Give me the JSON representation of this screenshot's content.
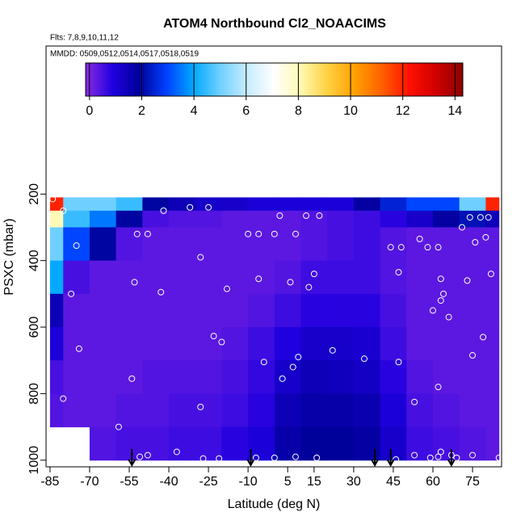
{
  "chart_data": {
    "type": "curtain",
    "title": "ATOM4 Northbound Cl2_NOAACIMS",
    "flights_label": "Flts: 7,8,9,10,11,12",
    "dates_label": "MMDD: 0509,0512,0514,0517,0518,0519",
    "xlabel": "Latitude (deg N)",
    "ylabel": "PSXC (mbar)",
    "xlim": [
      -86.5,
      86
    ],
    "xticks": [
      -85,
      -70,
      -55,
      -40,
      -25,
      -10,
      5,
      15,
      30,
      45,
      60,
      75
    ],
    "ylim": [
      1020,
      -245
    ],
    "yticks": [
      200,
      400,
      600,
      800,
      1000
    ],
    "cblim": [
      -0.15,
      14.3
    ],
    "cbticks": [
      0,
      2,
      4,
      6,
      8,
      10,
      12,
      14
    ],
    "colorscale": [
      "#8a2be2",
      "#2000e0",
      "#00009a",
      "#0040ff",
      "#00a8ff",
      "#70d0ff",
      "#c8ecff",
      "#ffffff",
      "#fff8b0",
      "#ffd040",
      "#ffa000",
      "#ff6000",
      "#ff1000",
      "#d00000",
      "#8b0000"
    ],
    "lat_edges": [
      -85,
      -80,
      -70,
      -60,
      -50,
      -40,
      -30,
      -20,
      -10,
      0,
      10,
      20,
      30,
      40,
      50,
      60,
      70,
      80,
      85
    ],
    "p_edges": [
      210,
      250,
      300,
      400,
      500,
      600,
      700,
      800,
      900,
      1000
    ],
    "values": [
      [
        12,
        5,
        5,
        4.5,
        2,
        1.5,
        1.2,
        1.2,
        1,
        1,
        1,
        1,
        1.8,
        2.5,
        3,
        3,
        5,
        12
      ],
      [
        8,
        4.5,
        3.5,
        2,
        0.5,
        0.4,
        0.4,
        0.3,
        0.3,
        0.3,
        0.4,
        0.5,
        0.6,
        0.8,
        1.2,
        1.8,
        2.2,
        1.5
      ],
      [
        5,
        3,
        2,
        0.4,
        0.3,
        0.3,
        0.3,
        0.3,
        0.3,
        0.3,
        0.4,
        0.5,
        0.6,
        0.4,
        0.3,
        0.3,
        0.3,
        0.3
      ],
      [
        4,
        0.5,
        0.3,
        0.3,
        0.3,
        0.3,
        0.3,
        0.3,
        0.3,
        0.4,
        0.6,
        0.6,
        0.6,
        0.4,
        0.3,
        0.3,
        0.3,
        0.3
      ],
      [
        1.5,
        0.3,
        0.3,
        0.3,
        0.3,
        0.3,
        0.3,
        0.3,
        0.4,
        0.6,
        0.8,
        0.8,
        0.8,
        0.5,
        0.3,
        0.3,
        0.3,
        0.3
      ],
      [
        1,
        0.3,
        0.3,
        0.3,
        0.3,
        0.3,
        0.3,
        0.4,
        0.6,
        0.9,
        1.2,
        1.2,
        1.1,
        0.6,
        0.3,
        0.3,
        0.3,
        0.3
      ],
      [
        0.5,
        0.3,
        0.3,
        0.3,
        0.4,
        0.4,
        0.4,
        0.5,
        0.7,
        1.2,
        1.5,
        1.4,
        1.3,
        0.8,
        0.4,
        0.3,
        0.3,
        0.3
      ],
      [
        0.4,
        0.3,
        0.3,
        0.4,
        0.4,
        0.5,
        0.5,
        0.6,
        0.8,
        1.5,
        1.7,
        1.7,
        1.6,
        1,
        0.5,
        0.4,
        0.3,
        0.3
      ],
      [
        null,
        null,
        0.4,
        0.5,
        0.5,
        0.6,
        0.6,
        0.8,
        1,
        1.7,
        1.9,
        1.9,
        1.8,
        1.2,
        0.6,
        0.5,
        0.4,
        0.3
      ]
    ],
    "points_x": [
      -84,
      -80,
      -75,
      -52,
      -48,
      -42,
      -32,
      -25,
      -53,
      -43,
      -28,
      -18,
      -10,
      -6,
      -6,
      2,
      0,
      6,
      8,
      12,
      17,
      13,
      15,
      -77,
      -74,
      -80,
      -54,
      -23,
      -20,
      -4,
      3,
      7,
      9,
      22,
      34,
      44,
      47,
      47,
      48,
      55,
      58,
      60,
      62,
      63,
      63,
      64,
      66,
      71,
      74,
      76,
      78,
      80,
      82,
      81,
      73,
      75,
      79,
      62,
      53,
      -28,
      -59,
      -51,
      -48,
      -37,
      -27,
      -21,
      -7,
      0,
      8,
      16,
      46,
      53,
      59,
      62,
      63,
      67,
      69,
      75,
      85
    ],
    "points_y": [
      215,
      250,
      355,
      320,
      320,
      250,
      240,
      240,
      465,
      495,
      390,
      485,
      320,
      320,
      455,
      265,
      320,
      465,
      320,
      265,
      265,
      480,
      440,
      500,
      665,
      815,
      755,
      627,
      645,
      705,
      755,
      720,
      690,
      670,
      695,
      360,
      705,
      435,
      360,
      335,
      360,
      550,
      360,
      455,
      520,
      500,
      570,
      300,
      270,
      345,
      270,
      330,
      440,
      270,
      460,
      685,
      630,
      780,
      825,
      840,
      900,
      990,
      985,
      975,
      995,
      995,
      993,
      993,
      990,
      993,
      998,
      985,
      993,
      990,
      975,
      985,
      993,
      985,
      993
    ],
    "point_color": "#ffffff",
    "arrows_x": [
      -54,
      -9,
      38,
      44,
      67
    ]
  }
}
